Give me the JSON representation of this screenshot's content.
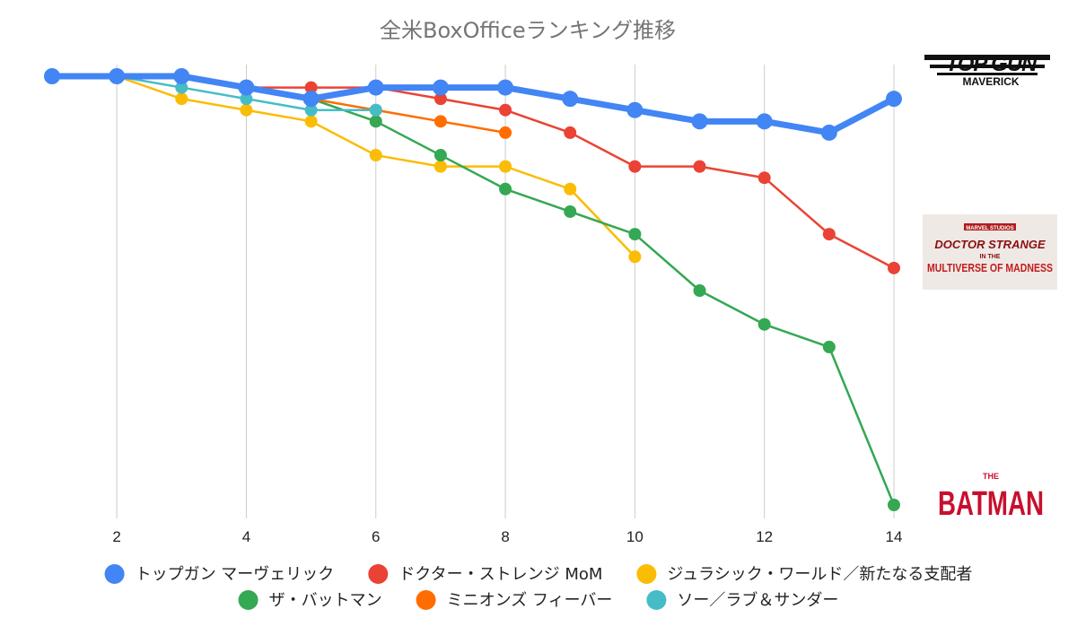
{
  "chart_data": {
    "type": "line",
    "title": "全米BoxOfficeランキング推移",
    "xlabel": "",
    "ylabel": "",
    "xlim": [
      1,
      14
    ],
    "ylim": [
      1,
      20
    ],
    "x_ticks": [
      2,
      4,
      6,
      8,
      10,
      12,
      14
    ],
    "y_direction": "rank (1 at top)",
    "grid": "vertical",
    "legend_position": "bottom",
    "series": [
      {
        "name": "トップガン マーヴェリック",
        "color": "#4285F4",
        "emphasis": true,
        "points": [
          [
            1,
            1
          ],
          [
            2,
            1
          ],
          [
            3,
            1
          ],
          [
            4,
            1.5
          ],
          [
            5,
            2
          ],
          [
            6,
            1.5
          ],
          [
            7,
            1.5
          ],
          [
            8,
            1.5
          ],
          [
            9,
            2
          ],
          [
            10,
            2.5
          ],
          [
            11,
            3
          ],
          [
            12,
            3
          ],
          [
            13,
            3.5
          ],
          [
            14,
            2
          ]
        ]
      },
      {
        "name": "ドクター・ストレンジ MoM",
        "color": "#EA4335",
        "points": [
          [
            4,
            1.5
          ],
          [
            5,
            1.5
          ],
          [
            6,
            1.5
          ],
          [
            7,
            2
          ],
          [
            8,
            2.5
          ],
          [
            9,
            3.5
          ],
          [
            10,
            5
          ],
          [
            11,
            5
          ],
          [
            12,
            5.5
          ],
          [
            13,
            8
          ],
          [
            14,
            9.5
          ]
        ]
      },
      {
        "name": "ジュラシック・ワールド／新たなる支配者",
        "color": "#FBBC04",
        "points": [
          [
            2,
            1
          ],
          [
            3,
            2
          ],
          [
            4,
            2.5
          ],
          [
            5,
            3
          ],
          [
            6,
            4.5
          ],
          [
            7,
            5
          ],
          [
            8,
            5
          ],
          [
            9,
            6
          ],
          [
            10,
            9
          ]
        ]
      },
      {
        "name": "ザ・バットマン",
        "color": "#34A853",
        "points": [
          [
            3,
            1
          ],
          [
            4,
            1.5
          ],
          [
            5,
            2
          ],
          [
            6,
            3
          ],
          [
            7,
            4.5
          ],
          [
            8,
            6
          ],
          [
            9,
            7
          ],
          [
            10,
            8
          ],
          [
            11,
            10.5
          ],
          [
            12,
            12
          ],
          [
            13,
            13
          ],
          [
            14,
            20
          ]
        ]
      },
      {
        "name": "ミニオンズ フィーバー",
        "color": "#FF6D01",
        "points": [
          [
            4,
            1.5
          ],
          [
            5,
            2
          ],
          [
            6,
            2.5
          ],
          [
            7,
            3
          ],
          [
            8,
            3.5
          ]
        ]
      },
      {
        "name": "ソー／ラブ＆サンダー",
        "color": "#46BDC6",
        "points": [
          [
            1,
            1
          ],
          [
            2,
            1
          ],
          [
            3,
            1.5
          ],
          [
            4,
            2
          ],
          [
            5,
            2.5
          ],
          [
            6,
            2.5
          ]
        ]
      }
    ]
  },
  "logos": {
    "topgun": {
      "line1": "TOP GUN",
      "line2": "MAVERICK"
    },
    "strange": {
      "brand": "MARVEL STUDIOS",
      "line1": "DOCTOR STRANGE",
      "line2": "IN THE",
      "line3": "MULTIVERSE OF MADNESS"
    },
    "batman": {
      "line1": "THE",
      "line2": "BATMAN"
    }
  }
}
